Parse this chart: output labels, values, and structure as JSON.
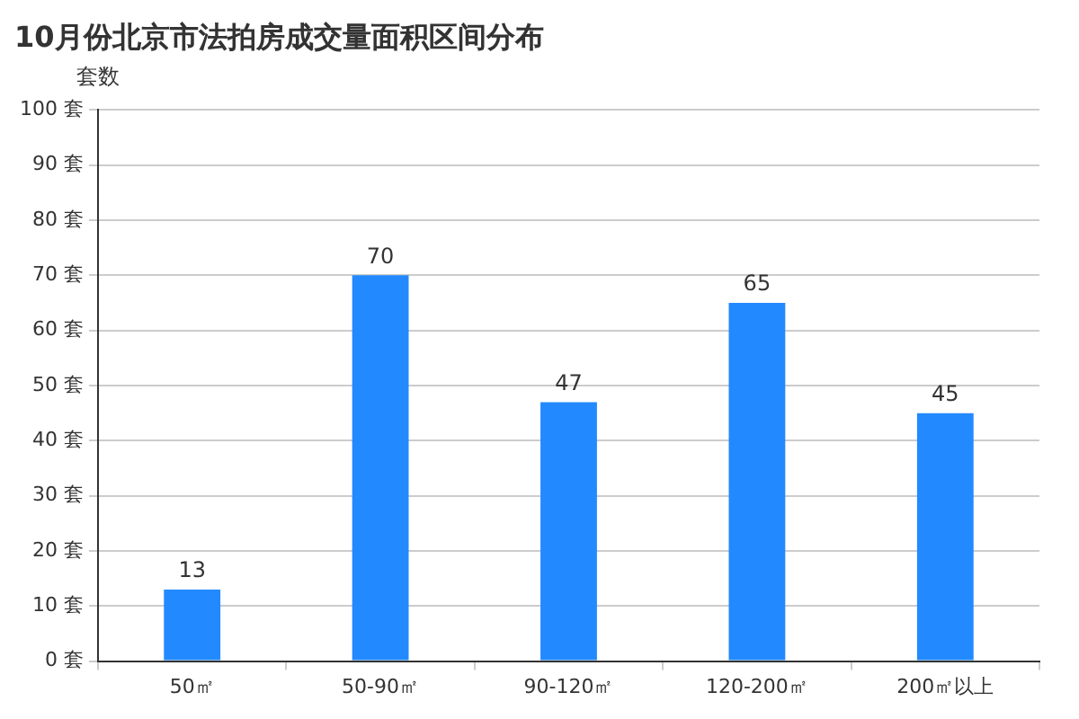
{
  "chart_data": {
    "type": "bar",
    "title": "10月份北京市法拍房成交量面积区间分布",
    "ylabel": "套数",
    "categories": [
      "50㎡",
      "50-90㎡",
      "90-120㎡",
      "120-200㎡",
      "200㎡以上"
    ],
    "values": [
      13,
      70,
      47,
      65,
      45
    ],
    "color": "#2389ff",
    "data_labels": true,
    "ylim": [
      0,
      100
    ],
    "yticks": [
      {
        "value": 0,
        "label": "0 套"
      },
      {
        "value": 10,
        "label": "10 套"
      },
      {
        "value": 20,
        "label": "20 套"
      },
      {
        "value": 30,
        "label": "30 套"
      },
      {
        "value": 40,
        "label": "40 套"
      },
      {
        "value": 50,
        "label": "50 套"
      },
      {
        "value": 60,
        "label": "60 套"
      },
      {
        "value": 70,
        "label": "70 套"
      },
      {
        "value": 80,
        "label": "80 套"
      },
      {
        "value": 90,
        "label": "90 套"
      },
      {
        "value": 100,
        "label": "100 套"
      }
    ],
    "grid": "y",
    "legend": false
  }
}
